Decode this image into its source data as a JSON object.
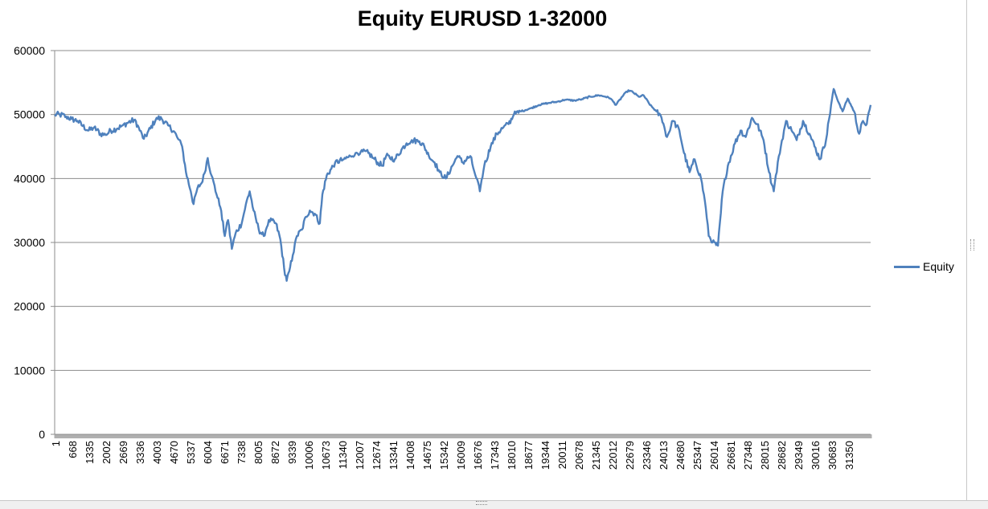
{
  "chart_data": {
    "type": "line",
    "title": "Equity EURUSD 1-32000",
    "xlabel": "",
    "ylabel": "",
    "ylim": [
      0,
      60000
    ],
    "yticks": [
      0,
      10000,
      20000,
      30000,
      40000,
      50000,
      60000
    ],
    "x_tick_labels": [
      "1",
      "668",
      "1335",
      "2002",
      "2669",
      "3336",
      "4003",
      "4670",
      "5337",
      "6004",
      "6671",
      "7338",
      "8005",
      "8672",
      "9339",
      "10006",
      "10673",
      "11340",
      "12007",
      "12674",
      "13341",
      "14008",
      "14675",
      "15342",
      "16009",
      "16676",
      "17343",
      "18010",
      "18677",
      "19344",
      "20011",
      "20678",
      "21345",
      "22012",
      "22679",
      "23346",
      "24013",
      "24680",
      "25347",
      "26014",
      "26681",
      "27348",
      "28015",
      "28682",
      "29349",
      "30016",
      "30683",
      "31350"
    ],
    "xlim": [
      1,
      32000
    ],
    "grid": true,
    "legend_position": "right",
    "series": [
      {
        "name": "Equity",
        "color": "#4F81BD",
        "points": [
          [
            1,
            50000
          ],
          [
            200,
            50000
          ],
          [
            450,
            49700
          ],
          [
            668,
            49300
          ],
          [
            900,
            49000
          ],
          [
            1100,
            48200
          ],
          [
            1335,
            47500
          ],
          [
            1550,
            48000
          ],
          [
            1800,
            47000
          ],
          [
            2002,
            46800
          ],
          [
            2200,
            47500
          ],
          [
            2450,
            47800
          ],
          [
            2669,
            48300
          ],
          [
            2900,
            48800
          ],
          [
            3150,
            49200
          ],
          [
            3336,
            47500
          ],
          [
            3500,
            46200
          ],
          [
            3750,
            47800
          ],
          [
            4003,
            49500
          ],
          [
            4200,
            49300
          ],
          [
            4450,
            48300
          ],
          [
            4670,
            47400
          ],
          [
            4800,
            46500
          ],
          [
            5000,
            45000
          ],
          [
            5150,
            41000
          ],
          [
            5337,
            38000
          ],
          [
            5450,
            36000
          ],
          [
            5600,
            38500
          ],
          [
            5800,
            39500
          ],
          [
            6004,
            43200
          ],
          [
            6150,
            40500
          ],
          [
            6350,
            37500
          ],
          [
            6500,
            35500
          ],
          [
            6671,
            31000
          ],
          [
            6800,
            33500
          ],
          [
            6950,
            29000
          ],
          [
            7100,
            31500
          ],
          [
            7338,
            33000
          ],
          [
            7500,
            36000
          ],
          [
            7650,
            38000
          ],
          [
            7800,
            35000
          ],
          [
            8005,
            32000
          ],
          [
            8200,
            31000
          ],
          [
            8400,
            33500
          ],
          [
            8672,
            33000
          ],
          [
            8850,
            30500
          ],
          [
            9000,
            26000
          ],
          [
            9100,
            24000
          ],
          [
            9200,
            25500
          ],
          [
            9339,
            28000
          ],
          [
            9500,
            31000
          ],
          [
            9700,
            32000
          ],
          [
            9850,
            34000
          ],
          [
            10006,
            35000
          ],
          [
            10200,
            34500
          ],
          [
            10400,
            33000
          ],
          [
            10500,
            37500
          ],
          [
            10673,
            40500
          ],
          [
            10850,
            41500
          ],
          [
            11000,
            42500
          ],
          [
            11340,
            43000
          ],
          [
            11600,
            43500
          ],
          [
            11800,
            44000
          ],
          [
            12007,
            44200
          ],
          [
            12300,
            44000
          ],
          [
            12500,
            43200
          ],
          [
            12674,
            42500
          ],
          [
            12850,
            42000
          ],
          [
            13000,
            43500
          ],
          [
            13341,
            43000
          ],
          [
            13600,
            44500
          ],
          [
            13800,
            45500
          ],
          [
            14008,
            46000
          ],
          [
            14300,
            45800
          ],
          [
            14500,
            45000
          ],
          [
            14675,
            43500
          ],
          [
            14900,
            42500
          ],
          [
            15100,
            41000
          ],
          [
            15342,
            40000
          ],
          [
            15600,
            42000
          ],
          [
            15800,
            43500
          ],
          [
            16009,
            42500
          ],
          [
            16300,
            43500
          ],
          [
            16500,
            40500
          ],
          [
            16676,
            38000
          ],
          [
            16850,
            42000
          ],
          [
            17100,
            45000
          ],
          [
            17343,
            47000
          ],
          [
            17600,
            48000
          ],
          [
            17800,
            48500
          ],
          [
            18010,
            50000
          ],
          [
            18300,
            50500
          ],
          [
            18677,
            51000
          ],
          [
            19000,
            51500
          ],
          [
            19344,
            51800
          ],
          [
            19700,
            52000
          ],
          [
            20011,
            52300
          ],
          [
            20400,
            52200
          ],
          [
            20678,
            52400
          ],
          [
            21000,
            52800
          ],
          [
            21345,
            53000
          ],
          [
            21600,
            52800
          ],
          [
            21800,
            52500
          ],
          [
            22012,
            51500
          ],
          [
            22300,
            53000
          ],
          [
            22500,
            53800
          ],
          [
            22679,
            53500
          ],
          [
            22900,
            52800
          ],
          [
            23100,
            53000
          ],
          [
            23346,
            51500
          ],
          [
            23600,
            50500
          ],
          [
            23800,
            49500
          ],
          [
            24013,
            46500
          ],
          [
            24250,
            49000
          ],
          [
            24500,
            47500
          ],
          [
            24680,
            44000
          ],
          [
            24900,
            41000
          ],
          [
            25100,
            43000
          ],
          [
            25347,
            40000
          ],
          [
            25500,
            36500
          ],
          [
            25650,
            31000
          ],
          [
            25800,
            30000
          ],
          [
            26014,
            29500
          ],
          [
            26200,
            38000
          ],
          [
            26400,
            42000
          ],
          [
            26681,
            45500
          ],
          [
            26900,
            47500
          ],
          [
            27100,
            46500
          ],
          [
            27348,
            49500
          ],
          [
            27550,
            48500
          ],
          [
            27800,
            46000
          ],
          [
            28015,
            41000
          ],
          [
            28200,
            38000
          ],
          [
            28400,
            43500
          ],
          [
            28682,
            49000
          ],
          [
            28900,
            47500
          ],
          [
            29100,
            46000
          ],
          [
            29349,
            49000
          ],
          [
            29600,
            47000
          ],
          [
            29800,
            45000
          ],
          [
            30016,
            43000
          ],
          [
            30250,
            46000
          ],
          [
            30450,
            51500
          ],
          [
            30550,
            54000
          ],
          [
            30683,
            52500
          ],
          [
            30900,
            50500
          ],
          [
            31100,
            52500
          ],
          [
            31350,
            50500
          ],
          [
            31550,
            47000
          ],
          [
            31700,
            49000
          ],
          [
            31850,
            48500
          ],
          [
            32000,
            51500
          ]
        ]
      }
    ]
  }
}
